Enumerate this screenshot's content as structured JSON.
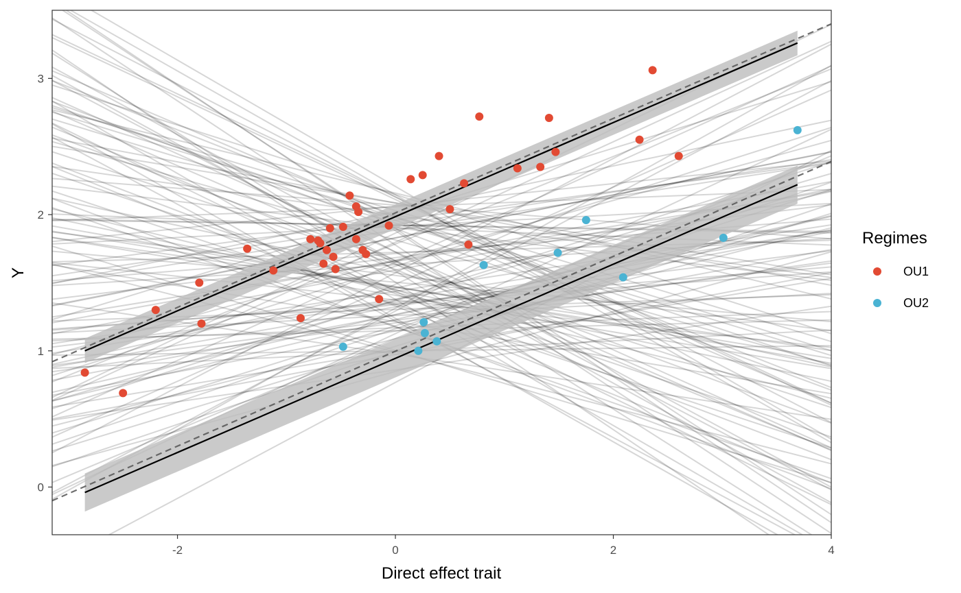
{
  "chart_data": {
    "type": "scatter",
    "xlabel": "Direct effect trait",
    "ylabel": "Y",
    "xlim": [
      -3.15,
      4.0
    ],
    "ylim": [
      -0.35,
      3.5
    ],
    "x_ticks": [
      -2,
      0,
      2,
      4
    ],
    "y_ticks": [
      0,
      1,
      2,
      3
    ],
    "x_tick_labels": [
      "-2",
      "0",
      "2",
      "4"
    ],
    "y_tick_labels": [
      "0",
      "1",
      "2",
      "3"
    ],
    "grid": false,
    "legend": {
      "title": "Regimes",
      "position": "right",
      "entries": [
        {
          "label": "OU1",
          "color": "#e24a33"
        },
        {
          "label": "OU2",
          "color": "#4ab3d3"
        }
      ]
    },
    "series": [
      {
        "name": "OU1",
        "color": "#e24a33",
        "points": [
          {
            "x": -2.85,
            "y": 0.84
          },
          {
            "x": -2.5,
            "y": 0.69
          },
          {
            "x": -2.2,
            "y": 1.3
          },
          {
            "x": -1.8,
            "y": 1.5
          },
          {
            "x": -1.78,
            "y": 1.2
          },
          {
            "x": -1.36,
            "y": 1.75
          },
          {
            "x": -1.12,
            "y": 1.59
          },
          {
            "x": -0.87,
            "y": 1.24
          },
          {
            "x": -0.78,
            "y": 1.82
          },
          {
            "x": -0.71,
            "y": 1.81
          },
          {
            "x": -0.69,
            "y": 1.79
          },
          {
            "x": -0.66,
            "y": 1.64
          },
          {
            "x": -0.63,
            "y": 1.74
          },
          {
            "x": -0.6,
            "y": 1.9
          },
          {
            "x": -0.57,
            "y": 1.69
          },
          {
            "x": -0.55,
            "y": 1.6
          },
          {
            "x": -0.48,
            "y": 1.91
          },
          {
            "x": -0.42,
            "y": 2.14
          },
          {
            "x": -0.36,
            "y": 2.06
          },
          {
            "x": -0.34,
            "y": 2.02
          },
          {
            "x": -0.36,
            "y": 1.82
          },
          {
            "x": -0.3,
            "y": 1.74
          },
          {
            "x": -0.27,
            "y": 1.71
          },
          {
            "x": -0.15,
            "y": 1.38
          },
          {
            "x": -0.06,
            "y": 1.92
          },
          {
            "x": 0.14,
            "y": 2.26
          },
          {
            "x": 0.25,
            "y": 2.29
          },
          {
            "x": 0.4,
            "y": 2.43
          },
          {
            "x": 0.5,
            "y": 2.04
          },
          {
            "x": 0.63,
            "y": 2.23
          },
          {
            "x": 0.67,
            "y": 1.78
          },
          {
            "x": 0.77,
            "y": 2.72
          },
          {
            "x": 1.12,
            "y": 2.34
          },
          {
            "x": 1.33,
            "y": 2.35
          },
          {
            "x": 1.41,
            "y": 2.71
          },
          {
            "x": 1.47,
            "y": 2.46
          },
          {
            "x": 2.24,
            "y": 2.55
          },
          {
            "x": 2.36,
            "y": 3.06
          },
          {
            "x": 2.6,
            "y": 2.43
          }
        ]
      },
      {
        "name": "OU2",
        "color": "#4ab3d3",
        "points": [
          {
            "x": -0.48,
            "y": 1.03
          },
          {
            "x": 0.21,
            "y": 1.0
          },
          {
            "x": 0.26,
            "y": 1.21
          },
          {
            "x": 0.27,
            "y": 1.13
          },
          {
            "x": 0.38,
            "y": 1.07
          },
          {
            "x": 0.81,
            "y": 1.63
          },
          {
            "x": 1.49,
            "y": 1.72
          },
          {
            "x": 1.75,
            "y": 1.96
          },
          {
            "x": 2.09,
            "y": 1.54
          },
          {
            "x": 3.01,
            "y": 1.83
          },
          {
            "x": 3.69,
            "y": 2.62
          }
        ]
      }
    ],
    "fit_lines": [
      {
        "group": "OU1",
        "x": [
          -2.85,
          3.69
        ],
        "y": [
          1.0,
          3.26
        ],
        "ci_halfwidth": 0.09
      },
      {
        "group": "OU2",
        "x": [
          -2.85,
          3.69
        ],
        "y": [
          -0.04,
          2.22
        ],
        "ci_halfwidth": 0.14
      }
    ],
    "reference_lines": [
      {
        "group": "OU1",
        "x": [
          -3.15,
          4.0
        ],
        "y": [
          0.92,
          3.4
        ]
      },
      {
        "group": "OU2",
        "x": [
          -3.15,
          4.0
        ],
        "y": [
          -0.1,
          2.39
        ]
      }
    ],
    "sample_line_count": 120
  }
}
